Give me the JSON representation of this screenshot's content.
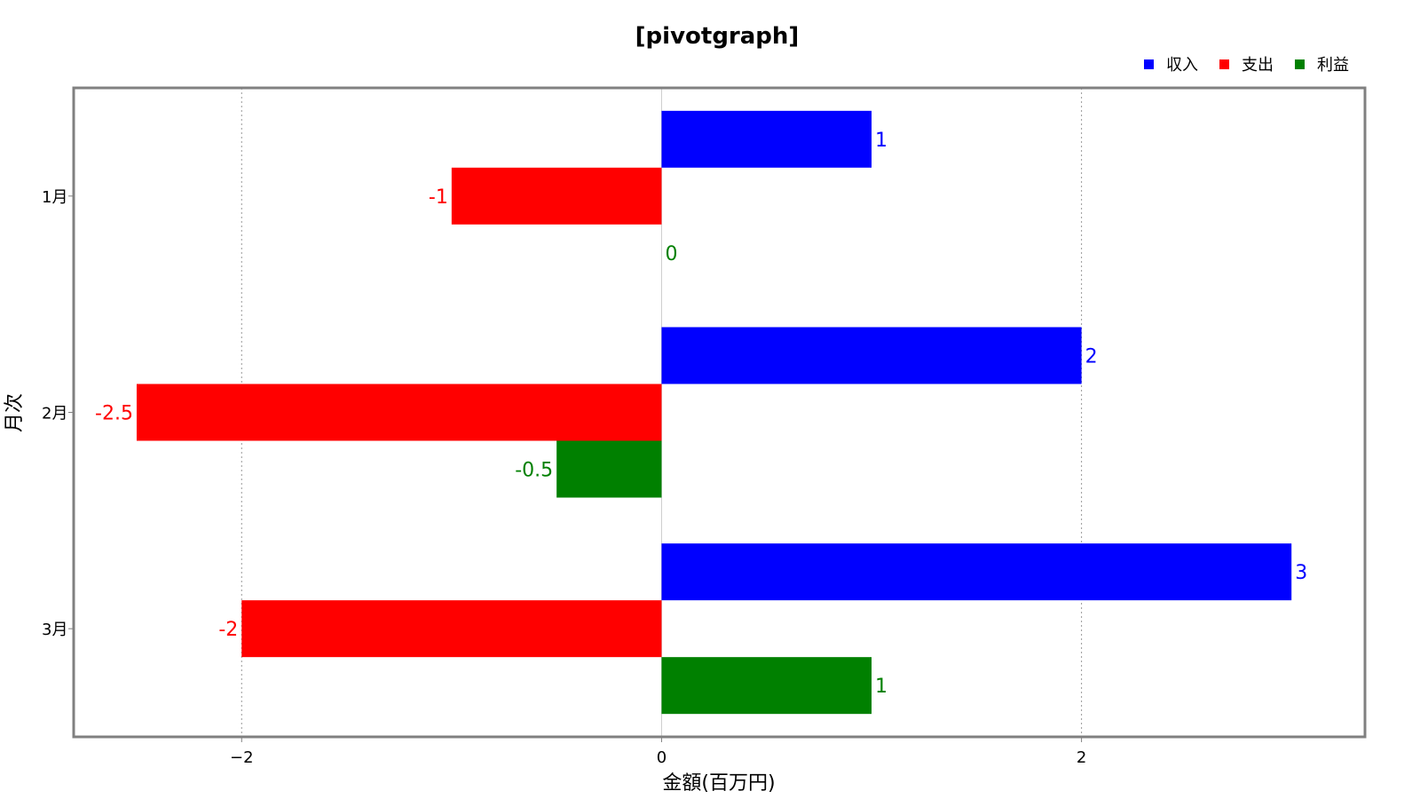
{
  "chart_data": {
    "type": "bar",
    "orientation": "horizontal",
    "title": "[pivotgraph]",
    "xlabel": "金額(百万円)",
    "ylabel": "月次",
    "categories": [
      "1月",
      "2月",
      "3月"
    ],
    "series": [
      {
        "name": "収入",
        "color": "#0000ff",
        "values": [
          1,
          2,
          3
        ],
        "labels": [
          "1",
          "2",
          "3"
        ]
      },
      {
        "name": "支出",
        "color": "#ff0000",
        "values": [
          -1,
          -2.5,
          -2
        ],
        "labels": [
          "-1",
          "-2.5",
          "-2"
        ]
      },
      {
        "name": "利益",
        "color": "#008000",
        "values": [
          0,
          -0.5,
          1
        ],
        "labels": [
          "0",
          "-0.5",
          "1"
        ]
      }
    ],
    "xlim": [
      -2.8,
      3.35
    ],
    "xticks": [
      -2,
      0,
      2
    ],
    "xtick_labels": [
      "−2",
      "0",
      "2"
    ],
    "grid": {
      "x": true,
      "y": false,
      "style": "dotted"
    },
    "legend": {
      "position": "top-right"
    }
  }
}
